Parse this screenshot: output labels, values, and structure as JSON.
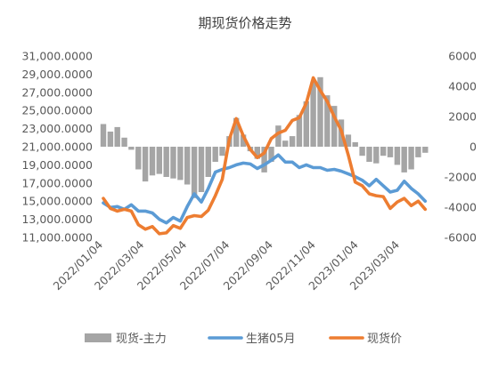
{
  "chart_data": {
    "type": "bar+line",
    "title": "期现货价格走势",
    "x_ticks": [
      "2022/01/04",
      "2022/03/04",
      "2022/05/04",
      "2022/07/04",
      "2022/09/04",
      "2022/11/04",
      "2023/01/04",
      "2023/03/04"
    ],
    "y_left": {
      "ticks": [
        "31,000.0000",
        "29,000.0000",
        "27,000.0000",
        "25,000.0000",
        "23,000.0000",
        "21,000.0000",
        "19,000.0000",
        "17,000.0000",
        "15,000.0000",
        "13,000.0000",
        "11,000.0000"
      ],
      "range": [
        11000,
        31000
      ]
    },
    "y_right": {
      "ticks": [
        "6000",
        "4000",
        "2000",
        "0",
        "-2000",
        "-4000",
        "-6000"
      ],
      "range": [
        -6000,
        6000
      ]
    },
    "series": [
      {
        "name": "现货-主力",
        "kind": "bar",
        "axis": "right",
        "color": "#a5a5a5",
        "points": [
          [
            "2022-01-04",
            1500
          ],
          [
            "2022-01-14",
            1000
          ],
          [
            "2022-01-24",
            1300
          ],
          [
            "2022-02-03",
            600
          ],
          [
            "2022-02-13",
            -200
          ],
          [
            "2022-02-23",
            -1500
          ],
          [
            "2022-03-05",
            -2300
          ],
          [
            "2022-03-15",
            -1900
          ],
          [
            "2022-03-25",
            -1800
          ],
          [
            "2022-04-04",
            -2000
          ],
          [
            "2022-04-14",
            -2100
          ],
          [
            "2022-04-24",
            -2200
          ],
          [
            "2022-05-04",
            -2500
          ],
          [
            "2022-05-14",
            -3400
          ],
          [
            "2022-05-24",
            -3000
          ],
          [
            "2022-06-03",
            -2000
          ],
          [
            "2022-06-13",
            -1000
          ],
          [
            "2022-06-23",
            -600
          ],
          [
            "2022-07-03",
            700
          ],
          [
            "2022-07-13",
            1900
          ],
          [
            "2022-07-23",
            800
          ],
          [
            "2022-08-02",
            -300
          ],
          [
            "2022-08-12",
            -800
          ],
          [
            "2022-08-22",
            -1700
          ],
          [
            "2022-09-01",
            -1000
          ],
          [
            "2022-09-11",
            1400
          ],
          [
            "2022-09-21",
            400
          ],
          [
            "2022-10-01",
            700
          ],
          [
            "2022-10-11",
            2100
          ],
          [
            "2022-10-21",
            3000
          ],
          [
            "2022-10-31",
            4300
          ],
          [
            "2022-11-10",
            4600
          ],
          [
            "2022-11-20",
            3400
          ],
          [
            "2022-11-30",
            2700
          ],
          [
            "2022-12-10",
            1800
          ],
          [
            "2022-12-20",
            800
          ],
          [
            "2022-12-30",
            300
          ],
          [
            "2023-01-09",
            -600
          ],
          [
            "2023-01-19",
            -1000
          ],
          [
            "2023-01-29",
            -1100
          ],
          [
            "2023-02-08",
            -600
          ],
          [
            "2023-02-18",
            -700
          ],
          [
            "2023-02-28",
            -1200
          ],
          [
            "2023-03-10",
            -1700
          ],
          [
            "2023-03-20",
            -1500
          ],
          [
            "2023-03-30",
            -700
          ],
          [
            "2023-04-09",
            -400
          ]
        ]
      },
      {
        "name": "生猪05月",
        "kind": "line",
        "axis": "left",
        "color": "#5b9bd5",
        "points": [
          [
            "2022-01-04",
            14800
          ],
          [
            "2022-01-14",
            14300
          ],
          [
            "2022-01-24",
            14400
          ],
          [
            "2022-02-03",
            14100
          ],
          [
            "2022-02-13",
            14600
          ],
          [
            "2022-02-23",
            13900
          ],
          [
            "2022-03-05",
            13900
          ],
          [
            "2022-03-15",
            13700
          ],
          [
            "2022-03-25",
            13000
          ],
          [
            "2022-04-04",
            12600
          ],
          [
            "2022-04-14",
            13200
          ],
          [
            "2022-04-24",
            12800
          ],
          [
            "2022-05-04",
            14400
          ],
          [
            "2022-05-14",
            15800
          ],
          [
            "2022-05-24",
            14900
          ],
          [
            "2022-06-03",
            16400
          ],
          [
            "2022-06-13",
            18200
          ],
          [
            "2022-06-23",
            18500
          ],
          [
            "2022-07-03",
            18700
          ],
          [
            "2022-07-13",
            19000
          ],
          [
            "2022-07-23",
            19200
          ],
          [
            "2022-08-02",
            19100
          ],
          [
            "2022-08-12",
            18600
          ],
          [
            "2022-08-22",
            19000
          ],
          [
            "2022-09-01",
            19500
          ],
          [
            "2022-09-11",
            20100
          ],
          [
            "2022-09-21",
            19300
          ],
          [
            "2022-10-01",
            19300
          ],
          [
            "2022-10-11",
            18700
          ],
          [
            "2022-10-21",
            19000
          ],
          [
            "2022-10-31",
            18700
          ],
          [
            "2022-11-10",
            18700
          ],
          [
            "2022-11-20",
            18400
          ],
          [
            "2022-11-30",
            18500
          ],
          [
            "2022-12-10",
            18300
          ],
          [
            "2022-12-20",
            18000
          ],
          [
            "2022-12-30",
            17700
          ],
          [
            "2023-01-09",
            17300
          ],
          [
            "2023-01-19",
            16700
          ],
          [
            "2023-01-29",
            17400
          ],
          [
            "2023-02-08",
            16700
          ],
          [
            "2023-02-18",
            16000
          ],
          [
            "2023-02-28",
            16200
          ],
          [
            "2023-03-10",
            17200
          ],
          [
            "2023-03-20",
            16400
          ],
          [
            "2023-03-30",
            15800
          ],
          [
            "2023-04-09",
            15000
          ]
        ]
      },
      {
        "name": "现货价",
        "kind": "line",
        "axis": "left",
        "color": "#ed7d31",
        "points": [
          [
            "2022-01-04",
            15300
          ],
          [
            "2022-01-14",
            14200
          ],
          [
            "2022-01-24",
            13900
          ],
          [
            "2022-02-03",
            14100
          ],
          [
            "2022-02-13",
            13900
          ],
          [
            "2022-02-23",
            12400
          ],
          [
            "2022-03-05",
            11900
          ],
          [
            "2022-03-15",
            12200
          ],
          [
            "2022-03-25",
            11400
          ],
          [
            "2022-04-04",
            11500
          ],
          [
            "2022-04-14",
            12300
          ],
          [
            "2022-04-24",
            12000
          ],
          [
            "2022-05-04",
            13200
          ],
          [
            "2022-05-14",
            13400
          ],
          [
            "2022-05-24",
            13300
          ],
          [
            "2022-06-03",
            14000
          ],
          [
            "2022-06-13",
            15600
          ],
          [
            "2022-06-23",
            17400
          ],
          [
            "2022-07-03",
            21800
          ],
          [
            "2022-07-13",
            24100
          ],
          [
            "2022-07-23",
            22200
          ],
          [
            "2022-08-02",
            20700
          ],
          [
            "2022-08-12",
            19800
          ],
          [
            "2022-08-22",
            20300
          ],
          [
            "2022-09-01",
            21900
          ],
          [
            "2022-09-11",
            22500
          ],
          [
            "2022-09-21",
            22800
          ],
          [
            "2022-10-01",
            23900
          ],
          [
            "2022-10-11",
            24200
          ],
          [
            "2022-10-21",
            25800
          ],
          [
            "2022-10-31",
            28600
          ],
          [
            "2022-11-10",
            27200
          ],
          [
            "2022-11-20",
            26000
          ],
          [
            "2022-11-30",
            24300
          ],
          [
            "2022-12-10",
            22800
          ],
          [
            "2022-12-20",
            20100
          ],
          [
            "2022-12-30",
            17100
          ],
          [
            "2023-01-09",
            16700
          ],
          [
            "2023-01-19",
            15800
          ],
          [
            "2023-01-29",
            15600
          ],
          [
            "2023-02-08",
            15500
          ],
          [
            "2023-02-18",
            14200
          ],
          [
            "2023-02-28",
            14900
          ],
          [
            "2023-03-10",
            15300
          ],
          [
            "2023-03-20",
            14500
          ],
          [
            "2023-03-30",
            15000
          ],
          [
            "2023-04-09",
            14100
          ]
        ]
      }
    ],
    "legend": {
      "placement": "bottom",
      "entries": [
        "现货-主力",
        "生猪05月",
        "现货价"
      ]
    },
    "gridlines": false,
    "x_range": [
      "2022-01-04",
      "2023-04-15"
    ]
  }
}
